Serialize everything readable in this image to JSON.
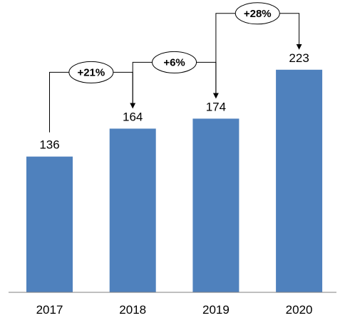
{
  "chart_data": {
    "type": "bar",
    "categories": [
      "2017",
      "2018",
      "2019",
      "2020"
    ],
    "values": [
      136,
      164,
      174,
      223
    ],
    "ylim": [
      0,
      240
    ],
    "bar_color": "#4F81BD",
    "annotations": [
      {
        "from": "2017",
        "to": "2018",
        "label": "+21%"
      },
      {
        "from": "2018",
        "to": "2019",
        "label": "+6%"
      },
      {
        "from": "2019",
        "to": "2020",
        "label": "+28%"
      }
    ]
  }
}
